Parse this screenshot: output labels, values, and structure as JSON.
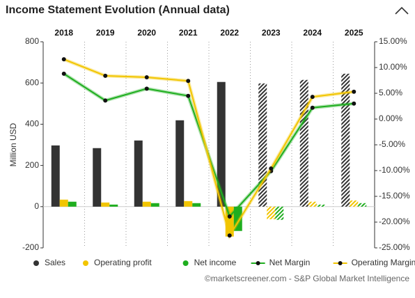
{
  "chart_data": {
    "type": "bar",
    "title": "Income Statement Evolution (Annual data)",
    "y_label": "Million USD",
    "credit": "©marketscreener.com - S&P Global Market Intelligence",
    "categories": [
      "2018",
      "2019",
      "2020",
      "2021",
      "2022",
      "2023",
      "2024",
      "2025"
    ],
    "hatched": [
      false,
      false,
      false,
      false,
      false,
      true,
      true,
      true
    ],
    "ylim": [
      -200,
      800
    ],
    "yticks": [
      -200,
      0,
      200,
      400,
      600,
      800
    ],
    "y2lim": [
      -25,
      15
    ],
    "y2ticks": [
      {
        "value": -25,
        "label": "-25.00%"
      },
      {
        "value": -20,
        "label": "-20.00%"
      },
      {
        "value": -15,
        "label": "-15.00%"
      },
      {
        "value": -10,
        "label": "-10.00%"
      },
      {
        "value": -5,
        "label": "-5.00%"
      },
      {
        "value": 0,
        "label": "0.00%"
      },
      {
        "value": 5,
        "label": "5.00%"
      },
      {
        "value": 10,
        "label": "10.00%"
      },
      {
        "value": 15,
        "label": "15.00%"
      }
    ],
    "series": [
      {
        "name": "Sales",
        "color": "#333333",
        "values": [
          297,
          284,
          321,
          419,
          605,
          598,
          615,
          645
        ]
      },
      {
        "name": "Operating profit",
        "color": "#f2c500",
        "values": [
          34,
          20,
          24,
          27,
          -145,
          -61,
          24,
          30
        ]
      },
      {
        "name": "Net income",
        "color": "#1fae1f",
        "values": [
          24,
          10,
          17,
          17,
          -118,
          -64,
          10,
          17
        ]
      },
      {
        "name": "Net Margin",
        "type": "line",
        "axis": "y2",
        "color": "#1fae1f",
        "values": [
          8.8,
          3.6,
          5.9,
          4.5,
          -18.9,
          -10.1,
          2.2,
          3.0
        ]
      },
      {
        "name": "Operating Margin",
        "type": "line",
        "axis": "y2",
        "color": "#f2c500",
        "values": [
          11.6,
          8.4,
          8.1,
          7.4,
          -22.6,
          -9.6,
          4.3,
          5.3
        ]
      }
    ]
  }
}
